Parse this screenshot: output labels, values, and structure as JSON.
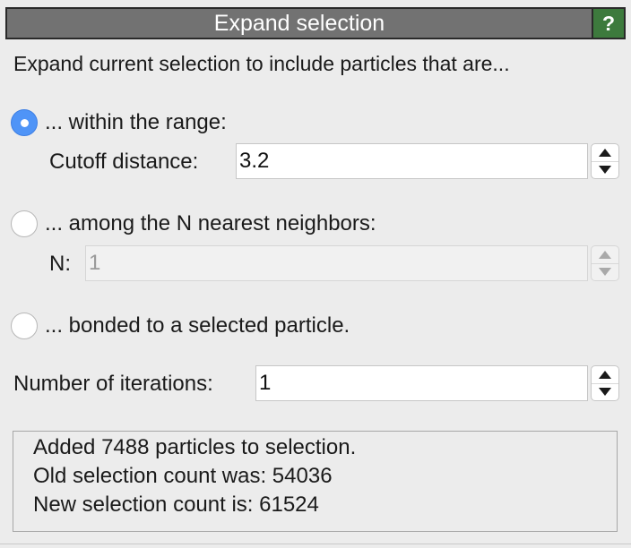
{
  "window": {
    "title": "Expand selection",
    "help_label": "?"
  },
  "intro_text": "Expand current selection to include particles that are...",
  "modes": [
    {
      "label": "... within the range:",
      "selected": true
    },
    {
      "label": "... among the N nearest neighbors:",
      "selected": false
    },
    {
      "label": "... bonded to a selected particle.",
      "selected": false
    }
  ],
  "cutoff": {
    "label": "Cutoff distance:",
    "value": "3.2",
    "enabled": true
  },
  "nearest_n": {
    "label": "N:",
    "value": "1",
    "enabled": false
  },
  "iterations": {
    "label": "Number of iterations:",
    "value": "1",
    "enabled": true
  },
  "status": {
    "lines": [
      "Added 7488 particles to selection.",
      "Old selection count was: 54036",
      "New selection count is: 61524"
    ]
  },
  "colors": {
    "title_bar": "#727272",
    "help_button": "#3d7a3d",
    "radio_selected": "#4f94f7",
    "panel_bg": "#ececec"
  }
}
